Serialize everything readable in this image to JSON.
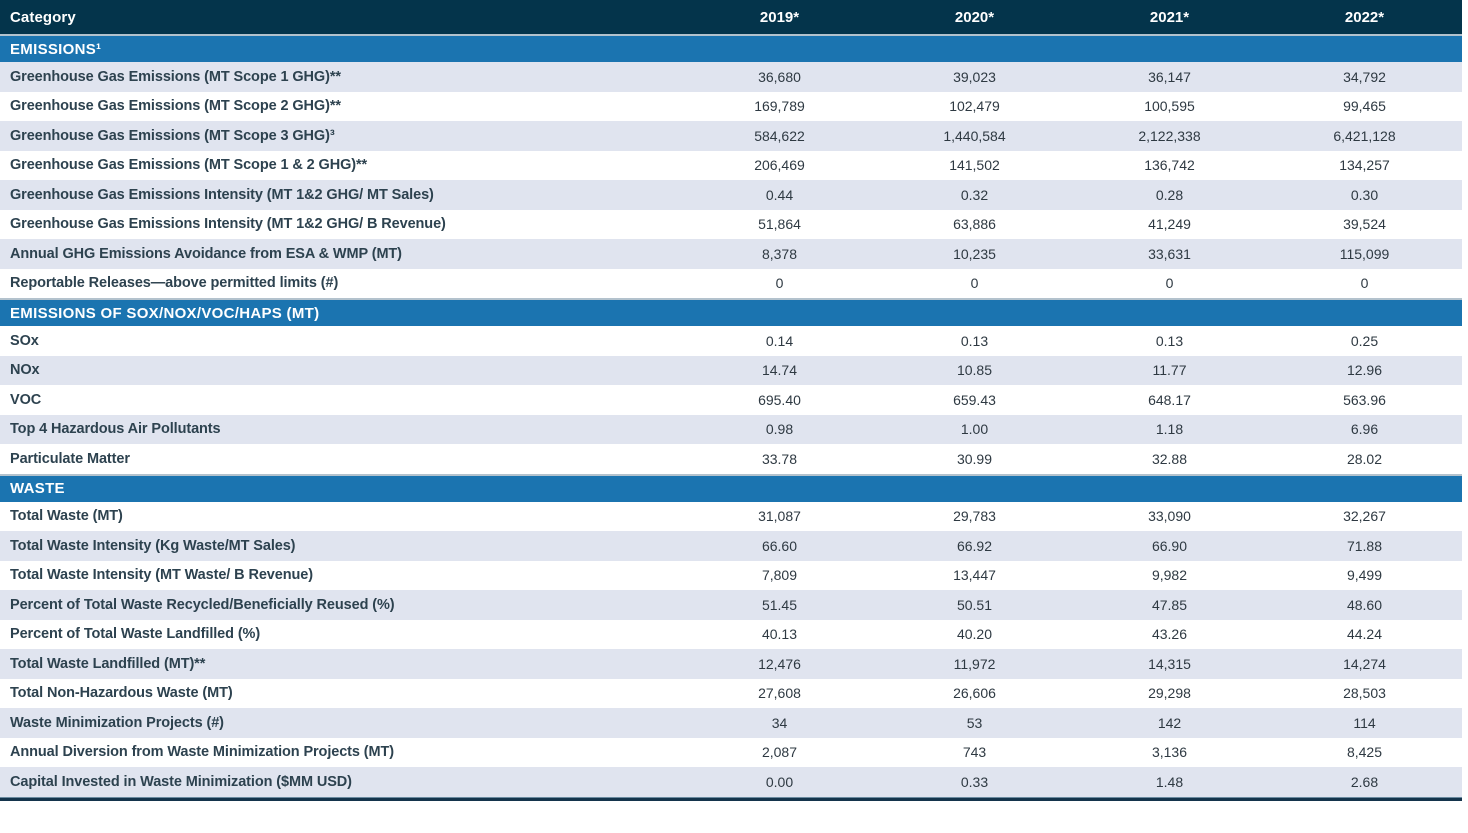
{
  "table": {
    "header": {
      "category_label": "Category",
      "years": [
        "2019*",
        "2020*",
        "2021*",
        "2022*"
      ]
    },
    "sections": [
      {
        "title": "EMISSIONS¹",
        "rows": [
          {
            "label": "Greenhouse Gas Emissions (MT Scope 1 GHG)**",
            "values": [
              "36,680",
              "39,023",
              "36,147",
              "34,792"
            ]
          },
          {
            "label": "Greenhouse Gas Emissions (MT Scope 2 GHG)**",
            "values": [
              "169,789",
              "102,479",
              "100,595",
              "99,465"
            ]
          },
          {
            "label": "Greenhouse Gas Emissions (MT Scope 3 GHG)³",
            "values": [
              "584,622",
              "1,440,584",
              "2,122,338",
              "6,421,128"
            ]
          },
          {
            "label": "Greenhouse Gas Emissions (MT Scope 1 & 2 GHG)**",
            "values": [
              "206,469",
              "141,502",
              "136,742",
              "134,257"
            ]
          },
          {
            "label": "Greenhouse Gas Emissions Intensity (MT 1&2 GHG/ MT Sales)",
            "values": [
              "0.44",
              "0.32",
              "0.28",
              "0.30"
            ]
          },
          {
            "label": "Greenhouse Gas Emissions Intensity (MT 1&2 GHG/ B Revenue)",
            "values": [
              "51,864",
              "63,886",
              "41,249",
              "39,524"
            ]
          },
          {
            "label": "Annual GHG Emissions Avoidance from ESA & WMP (MT)",
            "values": [
              "8,378",
              "10,235",
              "33,631",
              "115,099"
            ]
          },
          {
            "label": "Reportable Releases—above permitted limits (#)",
            "values": [
              "0",
              "0",
              "0",
              "0"
            ]
          }
        ]
      },
      {
        "title": "EMISSIONS OF SOX/NOX/VOC/HAPS (MT)",
        "rows": [
          {
            "label": "SOx",
            "values": [
              "0.14",
              "0.13",
              "0.13",
              "0.25"
            ]
          },
          {
            "label": "NOx",
            "values": [
              "14.74",
              "10.85",
              "11.77",
              "12.96"
            ]
          },
          {
            "label": "VOC",
            "values": [
              "695.40",
              "659.43",
              "648.17",
              "563.96"
            ]
          },
          {
            "label": "Top 4 Hazardous Air Pollutants",
            "values": [
              "0.98",
              "1.00",
              "1.18",
              "6.96"
            ]
          },
          {
            "label": "Particulate Matter",
            "values": [
              "33.78",
              "30.99",
              "32.88",
              "28.02"
            ]
          }
        ]
      },
      {
        "title": "WASTE",
        "rows": [
          {
            "label": "Total Waste (MT)",
            "values": [
              "31,087",
              "29,783",
              "33,090",
              "32,267"
            ]
          },
          {
            "label": "Total Waste Intensity (Kg Waste/MT Sales)",
            "values": [
              "66.60",
              "66.92",
              "66.90",
              "71.88"
            ]
          },
          {
            "label": "Total Waste Intensity (MT Waste/ B Revenue)",
            "values": [
              "7,809",
              "13,447",
              "9,982",
              "9,499"
            ]
          },
          {
            "label": "Percent of Total Waste Recycled/Beneficially Reused (%)",
            "values": [
              "51.45",
              "50.51",
              "47.85",
              "48.60"
            ]
          },
          {
            "label": "Percent of Total Waste Landfilled (%)",
            "values": [
              "40.13",
              "40.20",
              "43.26",
              "44.24"
            ]
          },
          {
            "label": "Total Waste Landfilled (MT)**",
            "values": [
              "12,476",
              "11,972",
              "14,315",
              "14,274"
            ]
          },
          {
            "label": "Total Non-Hazardous Waste (MT)",
            "values": [
              "27,608",
              "26,606",
              "29,298",
              "28,503"
            ]
          },
          {
            "label": "Waste Minimization Projects (#)",
            "values": [
              "34",
              "53",
              "142",
              "114"
            ]
          },
          {
            "label": "Annual Diversion from Waste Minimization Projects (MT)",
            "values": [
              "2,087",
              "743",
              "3,136",
              "8,425"
            ]
          },
          {
            "label": "Capital Invested in Waste Minimization ($MM USD)",
            "values": [
              "0.00",
              "0.33",
              "1.48",
              "2.68"
            ]
          }
        ]
      }
    ],
    "colors": {
      "header_bg": "#04344b",
      "section_bg": "#1b74b0",
      "stripe_bg": "#e0e4ef",
      "label_text": "#2d424f",
      "value_text": "#2e3942",
      "header_text": "#ffffff",
      "top_separator": "#b3c2cd",
      "bottom_border": "#14344c"
    }
  }
}
